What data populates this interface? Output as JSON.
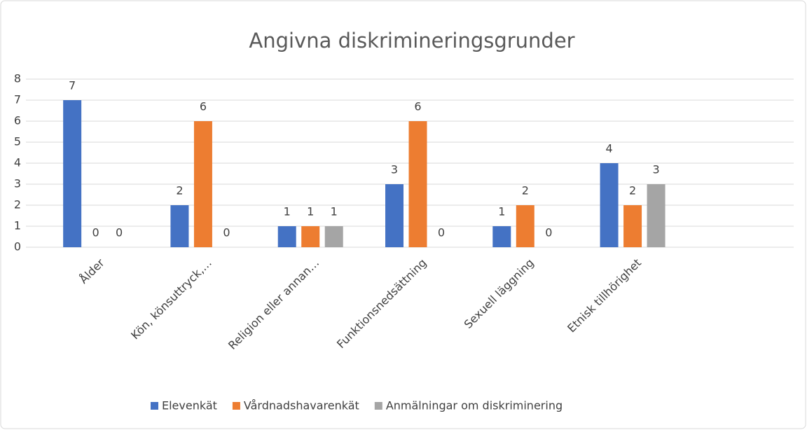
{
  "chart_data": {
    "type": "bar",
    "title": "Angivna diskrimineringsgrunder",
    "categories": [
      "Ålder",
      "Kön, könsuttryck,…",
      "Religion eller annan…",
      "Funktionsnedsättning",
      "Sexuell läggning",
      "Etnisk tillhörighet",
      null
    ],
    "series": [
      {
        "name": "Elevenkät",
        "color": "#4472c4",
        "values": [
          7,
          2,
          1,
          3,
          1,
          4,
          null
        ]
      },
      {
        "name": "Vårdnadshavarenkät",
        "color": "#ed7d31",
        "values": [
          0,
          6,
          1,
          6,
          2,
          2,
          null
        ]
      },
      {
        "name": "Anmälningar om diskriminering",
        "color": "#a5a5a5",
        "values": [
          0,
          0,
          1,
          0,
          0,
          3,
          null
        ]
      }
    ],
    "ylim": [
      0,
      8
    ],
    "yticks": [
      0,
      1,
      2,
      3,
      4,
      5,
      6,
      7,
      8
    ],
    "grid": true,
    "legend": "bottom"
  }
}
